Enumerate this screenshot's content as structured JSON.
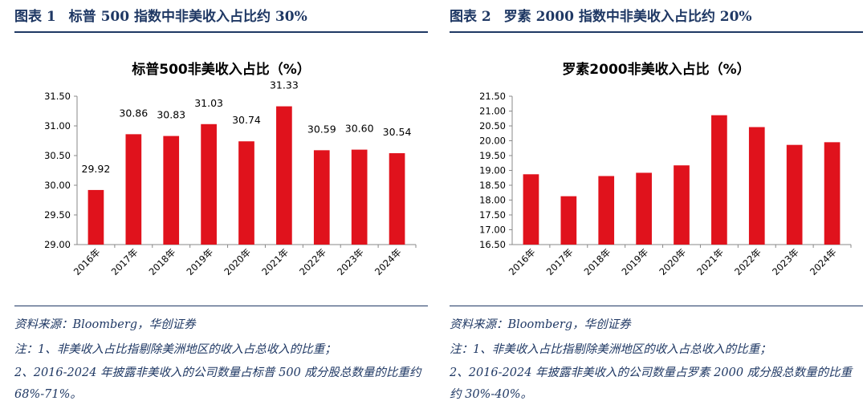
{
  "left": {
    "fig_label": "图表 1",
    "fig_title": "标普 500 指数中非美收入占比约 30%",
    "source": "资料来源：Bloomberg，华创证券",
    "note1": "注：1、非美收入占比指剔除美洲地区的收入占总收入的比重；",
    "note2": "2、2016-2024 年披露非美收入的公司数量占标普 500 成分股总数量的比重约 68%-71%。"
  },
  "right": {
    "fig_label": "图表 2",
    "fig_title": "罗素 2000 指数中非美收入占比约 20%",
    "source": "资料来源：Bloomberg，华创证券",
    "note1": "注：1、非美收入占比指剔除美洲地区的收入占总收入的比重；",
    "note2": "2、2016-2024 年披露非美收入的公司数量占罗素 2000 成分股总数量的比重约 30%-40%。"
  },
  "chart_data": [
    {
      "type": "bar",
      "title": "标普500非美收入占比（%）",
      "categories": [
        "2016年",
        "2017年",
        "2018年",
        "2019年",
        "2020年",
        "2021年",
        "2022年",
        "2023年",
        "2024年"
      ],
      "values": [
        29.92,
        30.86,
        30.83,
        31.03,
        30.74,
        31.33,
        30.59,
        30.6,
        30.54
      ],
      "data_labels": [
        "29.92",
        "30.86",
        "30.83",
        "31.03",
        "30.74",
        "31.33",
        "30.59",
        "30.60",
        "30.54"
      ],
      "ylim": [
        29.0,
        31.5
      ],
      "yticks": [
        "29.00",
        "29.50",
        "30.00",
        "30.50",
        "31.00",
        "31.50"
      ],
      "bar_color": "#e0121c",
      "show_labels": true
    },
    {
      "type": "bar",
      "title": "罗素2000非美收入占比（%）",
      "categories": [
        "2016年",
        "2017年",
        "2018年",
        "2019年",
        "2020年",
        "2021年",
        "2022年",
        "2023年",
        "2024年"
      ],
      "values": [
        18.87,
        18.13,
        18.81,
        18.92,
        19.17,
        20.86,
        20.46,
        19.86,
        19.95
      ],
      "ylim": [
        16.5,
        21.5
      ],
      "yticks": [
        "16.50",
        "17.00",
        "17.50",
        "18.00",
        "18.50",
        "19.00",
        "19.50",
        "20.00",
        "20.50",
        "21.00",
        "21.50"
      ],
      "bar_color": "#e0121c",
      "show_labels": false
    }
  ]
}
